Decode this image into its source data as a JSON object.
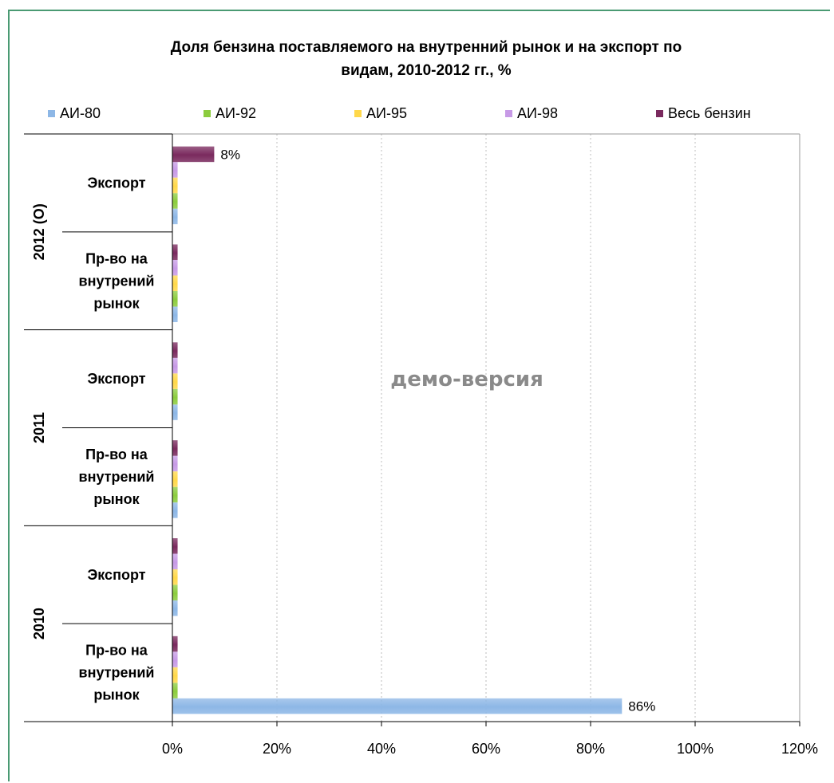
{
  "chart_data": {
    "type": "bar",
    "orientation": "horizontal",
    "title_lines": [
      "Доля бензина поставляемого на внутренний рынок и на экспорт по",
      "видам, 2010-2012 гг., %"
    ],
    "groups": [
      {
        "year": "2012 (О)",
        "categories": [
          "Экспорт",
          "Пр-во на внутрений рынок"
        ]
      },
      {
        "year": "2011",
        "categories": [
          "Экспорт",
          "Пр-во на внутрений рынок"
        ]
      },
      {
        "year": "2010",
        "categories": [
          "Экспорт",
          "Пр-во на внутрений рынок"
        ]
      }
    ],
    "category_label_lines": {
      "export": [
        "Экспорт"
      ],
      "domestic": [
        "Пр-во на",
        "внутрений",
        "рынок"
      ]
    },
    "series": [
      {
        "name": "АИ-80",
        "color": "#8db7e6",
        "values": [
          1,
          1,
          1,
          1,
          1,
          86
        ]
      },
      {
        "name": "АИ-92",
        "color": "#8ccc3e",
        "values": [
          1,
          1,
          1,
          1,
          1,
          1
        ]
      },
      {
        "name": "АИ-95",
        "color": "#ffd84a",
        "values": [
          1,
          1,
          1,
          1,
          1,
          1
        ]
      },
      {
        "name": "АИ-98",
        "color": "#c79ae6",
        "values": [
          1,
          1,
          1,
          1,
          1,
          1
        ]
      },
      {
        "name": "Весь бензин",
        "color": "#7a2a5e",
        "values": [
          8,
          1,
          1,
          1,
          1,
          1
        ]
      }
    ],
    "x_axis": {
      "min": 0,
      "max": 120,
      "step": 20,
      "tick_labels": [
        "0%",
        "20%",
        "40%",
        "60%",
        "80%",
        "100%",
        "120%"
      ]
    },
    "data_labels": [
      {
        "text": "86%"
      },
      {
        "text": "8%"
      }
    ],
    "watermark": "демо-версия",
    "grid": "vertical-dotted",
    "legend_position": "top"
  }
}
